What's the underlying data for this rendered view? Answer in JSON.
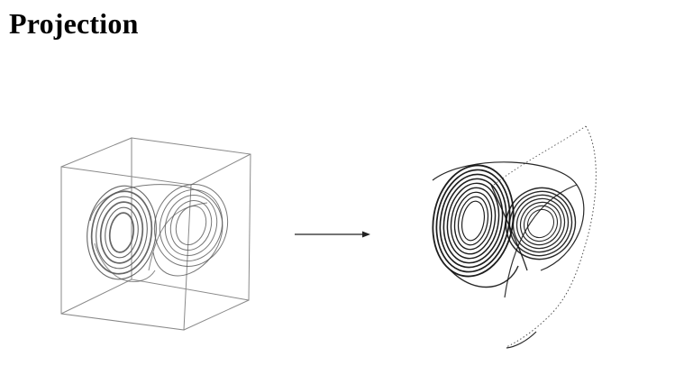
{
  "slide": {
    "title": "Projection"
  },
  "figures": {
    "left": {
      "icon": "3d-cube-with-butterfly-attractor"
    },
    "arrow": {
      "icon": "right-arrow"
    },
    "right": {
      "icon": "2d-projected-butterfly-attractor"
    }
  },
  "colors": {
    "background": "#ffffff",
    "text": "#000000",
    "cube_lines": "#8a8a8a",
    "attractor_left": "#555555",
    "attractor_right": "#111111"
  }
}
